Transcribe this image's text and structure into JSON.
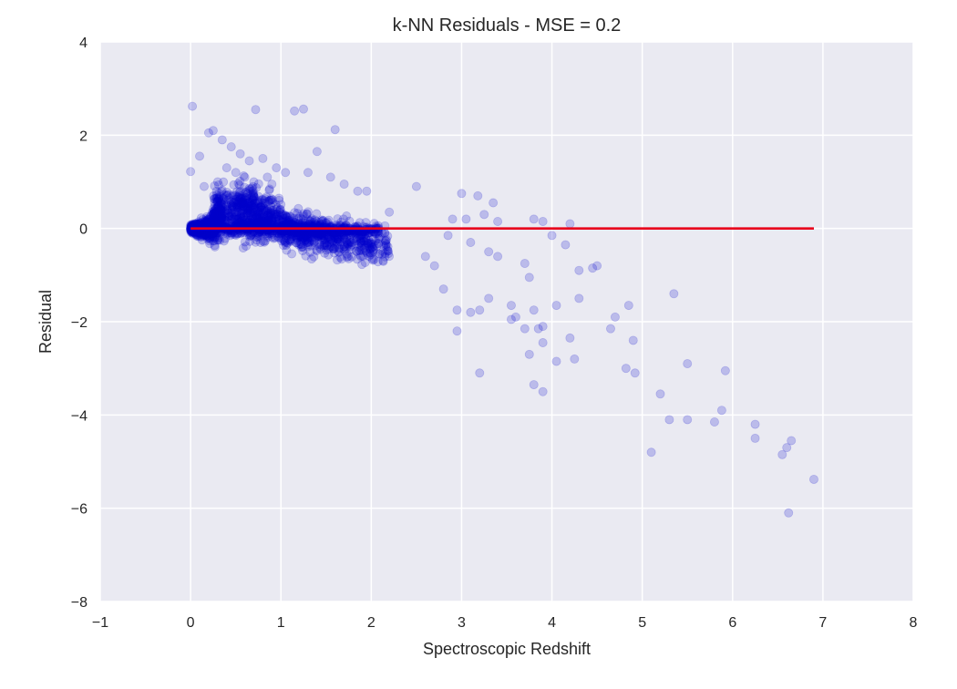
{
  "chart_data": {
    "type": "scatter",
    "title": "k-NN Residuals - MSE = 0.2",
    "xlabel": "Spectroscopic Redshift",
    "ylabel": "Residual",
    "xlim": [
      -1,
      8
    ],
    "ylim": [
      -8,
      4
    ],
    "xticks": [
      "−1",
      "0",
      "1",
      "2",
      "3",
      "4",
      "5",
      "6",
      "7",
      "8"
    ],
    "yticks": [
      "−8",
      "−6",
      "−4",
      "−2",
      "0",
      "2",
      "4"
    ],
    "grid": true,
    "background_color": "#EAEAF2",
    "grid_color": "#FFFFFF",
    "point_color": "#0000CC",
    "point_alpha": 0.2,
    "line_color": "#E8001C",
    "series": [
      {
        "kind": "points",
        "points": [
          [
            0.02,
            2.62
          ],
          [
            0.72,
            2.55
          ],
          [
            1.15,
            2.52
          ],
          [
            1.25,
            2.56
          ],
          [
            1.6,
            2.12
          ],
          [
            0.0,
            1.22
          ],
          [
            0.1,
            1.55
          ],
          [
            0.2,
            2.05
          ],
          [
            0.25,
            2.1
          ],
          [
            0.35,
            1.9
          ],
          [
            0.45,
            1.75
          ],
          [
            0.55,
            1.6
          ],
          [
            0.65,
            1.45
          ],
          [
            0.8,
            1.5
          ],
          [
            0.95,
            1.3
          ],
          [
            1.05,
            1.2
          ],
          [
            1.3,
            1.2
          ],
          [
            1.4,
            1.65
          ],
          [
            1.55,
            1.1
          ],
          [
            1.7,
            0.95
          ],
          [
            1.85,
            0.8
          ],
          [
            1.95,
            0.8
          ],
          [
            0.4,
            1.3
          ],
          [
            0.5,
            1.2
          ],
          [
            0.6,
            1.1
          ],
          [
            0.7,
            1.0
          ],
          [
            0.9,
            0.95
          ],
          [
            0.85,
            1.1
          ],
          [
            0.3,
            1.0
          ],
          [
            0.15,
            0.9
          ],
          [
            2.5,
            0.9
          ],
          [
            3.0,
            0.75
          ],
          [
            3.18,
            0.7
          ],
          [
            3.35,
            0.55
          ],
          [
            2.9,
            0.2
          ],
          [
            3.05,
            0.2
          ],
          [
            3.25,
            0.3
          ],
          [
            3.4,
            0.15
          ],
          [
            2.85,
            -0.15
          ],
          [
            3.1,
            -0.3
          ],
          [
            3.3,
            -0.5
          ],
          [
            3.4,
            -0.6
          ],
          [
            2.2,
            0.35
          ],
          [
            3.8,
            0.2
          ],
          [
            3.9,
            0.15
          ],
          [
            4.2,
            0.1
          ],
          [
            4.0,
            -0.15
          ],
          [
            4.15,
            -0.35
          ],
          [
            4.3,
            -0.9
          ],
          [
            4.45,
            -0.85
          ],
          [
            4.5,
            -0.8
          ],
          [
            3.7,
            -0.75
          ],
          [
            3.75,
            -1.05
          ],
          [
            2.6,
            -0.6
          ],
          [
            2.7,
            -0.8
          ],
          [
            2.8,
            -1.3
          ],
          [
            2.95,
            -1.75
          ],
          [
            3.1,
            -1.8
          ],
          [
            3.2,
            -1.75
          ],
          [
            3.3,
            -1.5
          ],
          [
            3.55,
            -1.65
          ],
          [
            3.55,
            -1.95
          ],
          [
            3.7,
            -2.15
          ],
          [
            3.6,
            -1.9
          ],
          [
            3.8,
            -1.75
          ],
          [
            3.85,
            -2.15
          ],
          [
            3.9,
            -2.1
          ],
          [
            3.9,
            -2.45
          ],
          [
            3.75,
            -2.7
          ],
          [
            3.8,
            -3.35
          ],
          [
            3.9,
            -3.5
          ],
          [
            4.05,
            -2.85
          ],
          [
            4.05,
            -1.65
          ],
          [
            4.2,
            -2.35
          ],
          [
            4.25,
            -2.8
          ],
          [
            4.3,
            -1.5
          ],
          [
            4.65,
            -2.15
          ],
          [
            4.7,
            -1.9
          ],
          [
            4.85,
            -1.65
          ],
          [
            4.9,
            -2.4
          ],
          [
            4.82,
            -3.0
          ],
          [
            4.92,
            -3.1
          ],
          [
            5.35,
            -1.4
          ],
          [
            5.2,
            -3.55
          ],
          [
            5.3,
            -4.1
          ],
          [
            5.1,
            -4.8
          ],
          [
            5.5,
            -4.1
          ],
          [
            5.5,
            -2.9
          ],
          [
            5.8,
            -4.15
          ],
          [
            5.88,
            -3.9
          ],
          [
            5.92,
            -3.05
          ],
          [
            6.25,
            -4.2
          ],
          [
            6.25,
            -4.5
          ],
          [
            6.55,
            -4.85
          ],
          [
            6.6,
            -4.7
          ],
          [
            6.65,
            -4.55
          ],
          [
            6.9,
            -5.38
          ],
          [
            6.62,
            -6.1
          ],
          [
            3.2,
            -3.1
          ],
          [
            2.95,
            -2.2
          ]
        ]
      },
      {
        "kind": "dense_cloud"
      },
      {
        "kind": "line",
        "points": [
          [
            0.0,
            0.0
          ],
          [
            6.9,
            0.0
          ]
        ]
      }
    ]
  }
}
